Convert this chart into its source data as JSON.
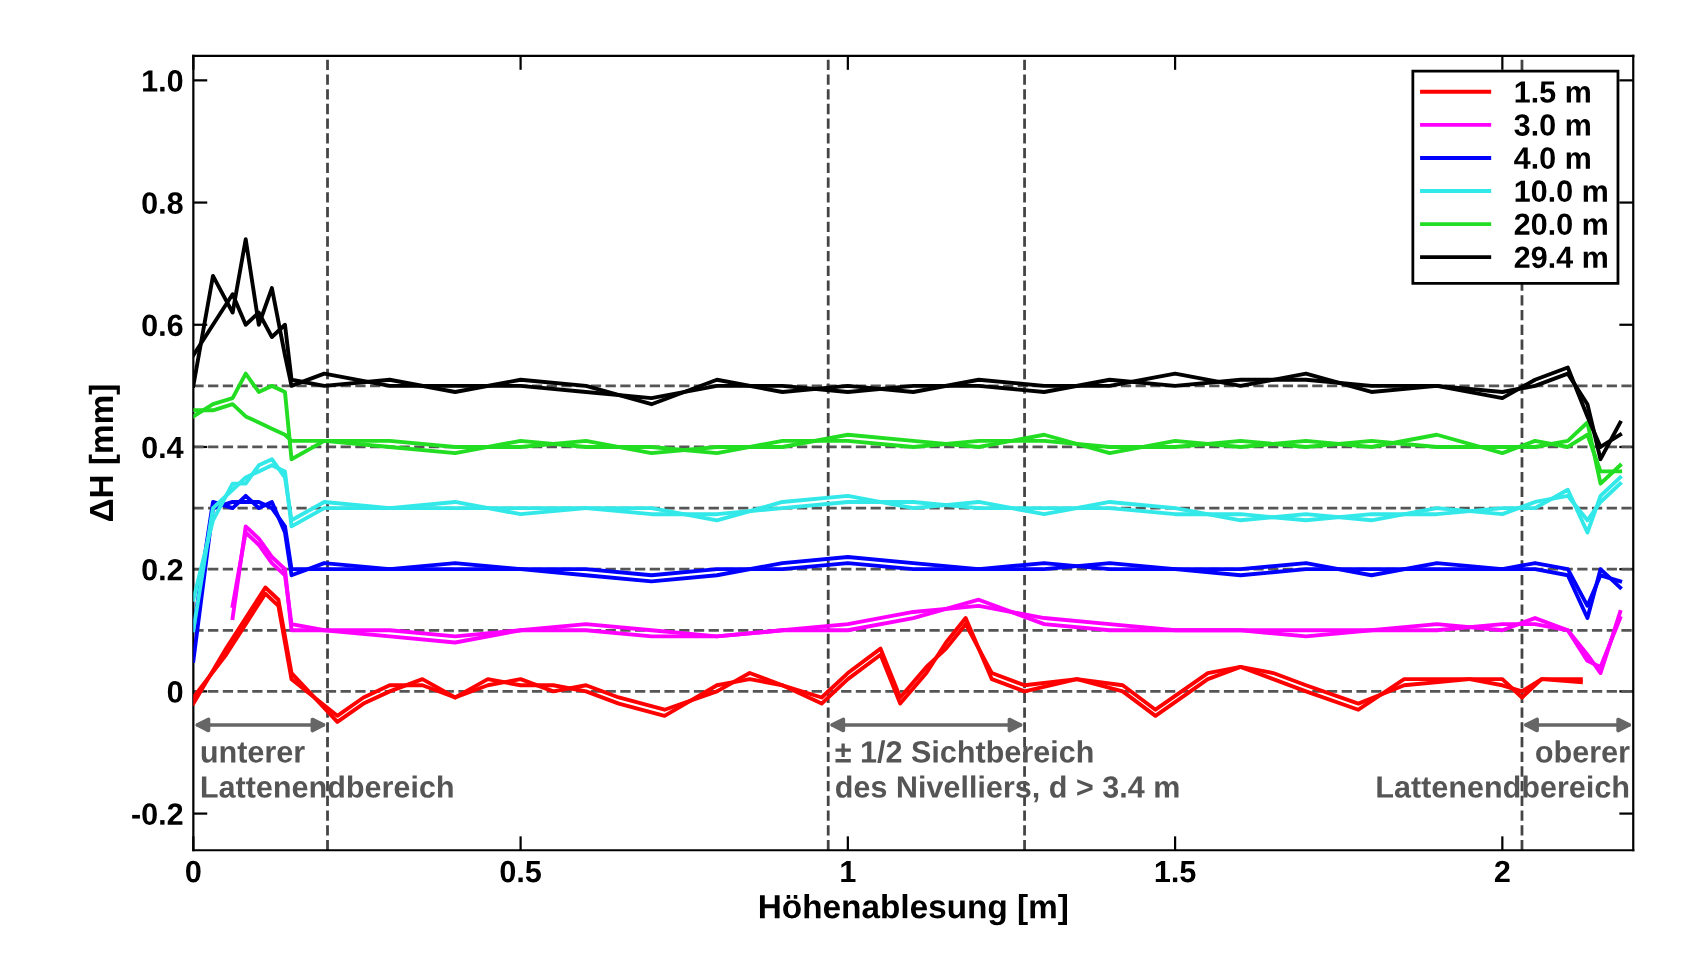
{
  "chart_data": {
    "type": "line",
    "xlabel": "Höhenablesung [m]",
    "ylabel": "ΔH [mm]",
    "xlim": [
      0,
      2.2
    ],
    "xticks": [
      0,
      0.5,
      1,
      1.5,
      2
    ],
    "ylim": [
      -0.26,
      1.04
    ],
    "yticks": [
      -0.2,
      0,
      0.2,
      0.4,
      0.6,
      0.8,
      {
        "value": 1.0,
        "label": "1.0"
      }
    ],
    "grid": false,
    "legend": "top right",
    "line_style": "solid",
    "marker": "none",
    "series": [
      {
        "name": "1.5 m",
        "color": "#ff0000",
        "x": [
          0,
          0.05,
          0.11,
          0.13,
          0.15,
          0.22,
          0.26,
          0.3,
          0.35,
          0.4,
          0.45,
          0.5,
          0.55,
          0.6,
          0.65,
          0.72,
          0.8,
          0.85,
          0.9,
          0.96,
          1.0,
          1.05,
          1.08,
          1.12,
          1.15,
          1.18,
          1.22,
          1.27,
          1.35,
          1.42,
          1.47,
          1.55,
          1.6,
          1.65,
          1.7,
          1.78,
          1.85,
          1.95,
          2.0,
          2.03,
          2.06,
          2.12
        ],
        "values": [
          -0.02,
          0.07,
          0.17,
          0.15,
          0.03,
          -0.05,
          -0.02,
          0,
          0.02,
          -0.01,
          0.01,
          0.02,
          0,
          0.01,
          -0.01,
          -0.03,
          0,
          0.03,
          0.01,
          -0.02,
          0.02,
          0.06,
          -0.02,
          0.03,
          0.08,
          0.12,
          0.02,
          0,
          0.02,
          0.01,
          -0.03,
          0.03,
          0.04,
          0.02,
          0,
          -0.03,
          0.02,
          0.02,
          0.01,
          0,
          0.02,
          0.015
        ]
      },
      {
        "color": "#ff0000",
        "x": [
          0,
          0.05,
          0.11,
          0.13,
          0.15,
          0.22,
          0.26,
          0.3,
          0.35,
          0.4,
          0.45,
          0.5,
          0.55,
          0.6,
          0.65,
          0.72,
          0.8,
          0.85,
          0.9,
          0.96,
          1.0,
          1.05,
          1.08,
          1.12,
          1.15,
          1.18,
          1.22,
          1.27,
          1.35,
          1.42,
          1.47,
          1.55,
          1.6,
          1.65,
          1.7,
          1.78,
          1.85,
          1.95,
          2.0,
          2.03,
          2.06,
          2.12
        ],
        "values": [
          -0.01,
          0.06,
          0.16,
          0.14,
          0.02,
          -0.04,
          -0.01,
          0.01,
          0.01,
          -0.01,
          0.02,
          0.01,
          0.01,
          0,
          -0.02,
          -0.04,
          0.01,
          0.02,
          0.01,
          -0.01,
          0.03,
          0.07,
          -0.01,
          0.04,
          0.07,
          0.11,
          0.03,
          0.01,
          0.02,
          0,
          -0.04,
          0.02,
          0.04,
          0.03,
          0.01,
          -0.02,
          0.01,
          0.02,
          0.02,
          -0.01,
          0.02,
          0.02
        ]
      },
      {
        "name": "3.0 m",
        "color": "#ff00ff",
        "x": [
          0.06,
          0.08,
          0.1,
          0.12,
          0.14,
          0.15,
          0.2,
          0.3,
          0.4,
          0.5,
          0.6,
          0.7,
          0.8,
          0.9,
          1.0,
          1.1,
          1.2,
          1.3,
          1.4,
          1.5,
          1.6,
          1.7,
          1.8,
          1.9,
          2.0,
          2.05,
          2.1,
          2.13,
          2.15,
          2.18
        ],
        "values": [
          0.12,
          0.27,
          0.25,
          0.22,
          0.2,
          0.1,
          0.1,
          0.09,
          0.08,
          0.1,
          0.1,
          0.09,
          0.09,
          0.1,
          0.1,
          0.12,
          0.15,
          0.11,
          0.1,
          0.1,
          0.1,
          0.09,
          0.1,
          0.11,
          0.1,
          0.12,
          0.1,
          0.06,
          0.03,
          0.13
        ]
      },
      {
        "color": "#ff00ff",
        "x": [
          0.06,
          0.08,
          0.1,
          0.12,
          0.14,
          0.15,
          0.2,
          0.3,
          0.4,
          0.5,
          0.6,
          0.7,
          0.8,
          0.9,
          1.0,
          1.1,
          1.2,
          1.3,
          1.4,
          1.5,
          1.6,
          1.7,
          1.8,
          1.9,
          2.0,
          2.05,
          2.1,
          2.13,
          2.15,
          2.18
        ],
        "values": [
          0.14,
          0.26,
          0.24,
          0.21,
          0.19,
          0.11,
          0.1,
          0.1,
          0.09,
          0.1,
          0.11,
          0.1,
          0.09,
          0.1,
          0.11,
          0.13,
          0.14,
          0.12,
          0.11,
          0.1,
          0.1,
          0.1,
          0.1,
          0.1,
          0.11,
          0.11,
          0.1,
          0.05,
          0.04,
          0.12
        ]
      },
      {
        "name": "4.0 m",
        "color": "#0000ff",
        "x": [
          0,
          0.03,
          0.06,
          0.08,
          0.1,
          0.12,
          0.14,
          0.15,
          0.2,
          0.3,
          0.4,
          0.5,
          0.6,
          0.7,
          0.8,
          0.9,
          1.0,
          1.1,
          1.2,
          1.3,
          1.4,
          1.5,
          1.6,
          1.7,
          1.8,
          1.9,
          2.0,
          2.05,
          2.1,
          2.13,
          2.15,
          2.18
        ],
        "values": [
          0.05,
          0.3,
          0.31,
          0.31,
          0.31,
          0.3,
          0.27,
          0.2,
          0.2,
          0.2,
          0.2,
          0.2,
          0.2,
          0.19,
          0.2,
          0.2,
          0.21,
          0.2,
          0.2,
          0.2,
          0.21,
          0.2,
          0.19,
          0.2,
          0.2,
          0.2,
          0.2,
          0.2,
          0.19,
          0.12,
          0.2,
          0.17
        ]
      },
      {
        "color": "#0000ff",
        "x": [
          0,
          0.03,
          0.06,
          0.08,
          0.1,
          0.12,
          0.14,
          0.15,
          0.2,
          0.3,
          0.4,
          0.5,
          0.6,
          0.7,
          0.8,
          0.9,
          1.0,
          1.1,
          1.2,
          1.3,
          1.4,
          1.5,
          1.6,
          1.7,
          1.8,
          1.9,
          2.0,
          2.05,
          2.1,
          2.13,
          2.15,
          2.18
        ],
        "values": [
          0.1,
          0.31,
          0.3,
          0.32,
          0.3,
          0.31,
          0.26,
          0.19,
          0.21,
          0.2,
          0.21,
          0.2,
          0.19,
          0.18,
          0.19,
          0.21,
          0.22,
          0.21,
          0.2,
          0.21,
          0.2,
          0.2,
          0.2,
          0.21,
          0.19,
          0.21,
          0.2,
          0.21,
          0.2,
          0.14,
          0.19,
          0.18
        ]
      },
      {
        "name": "10.0 m",
        "color": "#33e8e8",
        "x": [
          0,
          0.03,
          0.06,
          0.08,
          0.1,
          0.12,
          0.14,
          0.15,
          0.2,
          0.3,
          0.4,
          0.5,
          0.6,
          0.7,
          0.8,
          0.9,
          1.0,
          1.1,
          1.2,
          1.3,
          1.4,
          1.5,
          1.6,
          1.7,
          1.8,
          1.9,
          2.0,
          2.05,
          2.1,
          2.13,
          2.15,
          2.18
        ],
        "values": [
          0.1,
          0.3,
          0.33,
          0.35,
          0.36,
          0.37,
          0.36,
          0.27,
          0.3,
          0.3,
          0.3,
          0.3,
          0.3,
          0.29,
          0.29,
          0.3,
          0.31,
          0.31,
          0.3,
          0.3,
          0.3,
          0.29,
          0.29,
          0.28,
          0.29,
          0.29,
          0.3,
          0.3,
          0.33,
          0.26,
          0.32,
          0.35
        ]
      },
      {
        "color": "#33e8e8",
        "x": [
          0,
          0.03,
          0.06,
          0.08,
          0.1,
          0.12,
          0.14,
          0.15,
          0.2,
          0.3,
          0.4,
          0.5,
          0.6,
          0.7,
          0.8,
          0.9,
          1.0,
          1.1,
          1.2,
          1.3,
          1.4,
          1.5,
          1.6,
          1.7,
          1.8,
          1.9,
          2.0,
          2.05,
          2.1,
          2.13,
          2.15,
          2.18
        ],
        "values": [
          0.15,
          0.28,
          0.34,
          0.34,
          0.37,
          0.38,
          0.35,
          0.28,
          0.31,
          0.3,
          0.31,
          0.29,
          0.3,
          0.3,
          0.28,
          0.31,
          0.32,
          0.3,
          0.31,
          0.29,
          0.31,
          0.3,
          0.28,
          0.29,
          0.28,
          0.3,
          0.29,
          0.31,
          0.32,
          0.28,
          0.31,
          0.34
        ]
      },
      {
        "name": "20.0 m",
        "color": "#22dd22",
        "x": [
          0,
          0.03,
          0.06,
          0.08,
          0.1,
          0.12,
          0.14,
          0.15,
          0.2,
          0.3,
          0.4,
          0.5,
          0.6,
          0.7,
          0.8,
          0.9,
          1.0,
          1.1,
          1.2,
          1.3,
          1.4,
          1.5,
          1.6,
          1.7,
          1.8,
          1.9,
          2.0,
          2.05,
          2.1,
          2.13,
          2.15,
          2.18
        ],
        "values": [
          0.45,
          0.47,
          0.48,
          0.52,
          0.49,
          0.5,
          0.49,
          0.38,
          0.41,
          0.4,
          0.39,
          0.41,
          0.4,
          0.4,
          0.39,
          0.41,
          0.41,
          0.4,
          0.41,
          0.41,
          0.4,
          0.4,
          0.41,
          0.4,
          0.41,
          0.4,
          0.4,
          0.4,
          0.41,
          0.44,
          0.34,
          0.37
        ]
      },
      {
        "color": "#22dd22",
        "x": [
          0,
          0.03,
          0.06,
          0.08,
          0.1,
          0.12,
          0.14,
          0.15,
          0.2,
          0.3,
          0.4,
          0.5,
          0.6,
          0.7,
          0.8,
          0.9,
          1.0,
          1.1,
          1.2,
          1.3,
          1.4,
          1.5,
          1.6,
          1.7,
          1.8,
          1.9,
          2.0,
          2.05,
          2.1,
          2.13,
          2.15,
          2.18
        ],
        "values": [
          0.46,
          0.46,
          0.47,
          0.45,
          0.44,
          0.43,
          0.42,
          0.41,
          0.41,
          0.41,
          0.4,
          0.4,
          0.41,
          0.39,
          0.4,
          0.4,
          0.42,
          0.41,
          0.4,
          0.42,
          0.39,
          0.41,
          0.4,
          0.41,
          0.4,
          0.42,
          0.39,
          0.41,
          0.4,
          0.42,
          0.36,
          0.36
        ]
      },
      {
        "name": "29.4 m",
        "color": "#000000",
        "x": [
          0,
          0.03,
          0.06,
          0.08,
          0.1,
          0.12,
          0.14,
          0.15,
          0.2,
          0.3,
          0.4,
          0.5,
          0.6,
          0.7,
          0.8,
          0.9,
          1.0,
          1.1,
          1.2,
          1.3,
          1.4,
          1.5,
          1.6,
          1.7,
          1.8,
          1.9,
          2.0,
          2.05,
          2.1,
          2.13,
          2.15,
          2.18
        ],
        "values": [
          0.5,
          0.68,
          0.62,
          0.74,
          0.6,
          0.66,
          0.55,
          0.5,
          0.52,
          0.5,
          0.5,
          0.5,
          0.49,
          0.48,
          0.5,
          0.5,
          0.49,
          0.5,
          0.5,
          0.49,
          0.51,
          0.5,
          0.51,
          0.51,
          0.5,
          0.5,
          0.49,
          0.5,
          0.52,
          0.47,
          0.38,
          0.44
        ]
      },
      {
        "color": "#000000",
        "x": [
          0,
          0.03,
          0.06,
          0.08,
          0.1,
          0.12,
          0.14,
          0.15,
          0.2,
          0.3,
          0.4,
          0.5,
          0.6,
          0.7,
          0.8,
          0.9,
          1.0,
          1.1,
          1.2,
          1.3,
          1.4,
          1.5,
          1.6,
          1.7,
          1.8,
          1.9,
          2.0,
          2.05,
          2.1,
          2.13,
          2.15,
          2.18
        ],
        "values": [
          0.55,
          0.6,
          0.65,
          0.6,
          0.62,
          0.58,
          0.6,
          0.51,
          0.5,
          0.51,
          0.49,
          0.51,
          0.5,
          0.47,
          0.51,
          0.49,
          0.5,
          0.49,
          0.51,
          0.5,
          0.5,
          0.52,
          0.5,
          0.52,
          0.49,
          0.5,
          0.48,
          0.51,
          0.53,
          0.45,
          0.4,
          0.42
        ]
      }
    ],
    "ref_lines": [
      {
        "axis": "y",
        "value": 0,
        "color": "#555555",
        "line_style": "dashed"
      },
      {
        "axis": "y",
        "value": 0.1,
        "color": "#555555",
        "line_style": "dashed"
      },
      {
        "axis": "y",
        "value": 0.2,
        "color": "#555555",
        "line_style": "dashed"
      },
      {
        "axis": "y",
        "value": 0.3,
        "color": "#555555",
        "line_style": "dashed"
      },
      {
        "axis": "y",
        "value": 0.4,
        "color": "#555555",
        "line_style": "dashed"
      },
      {
        "axis": "y",
        "value": 0.5,
        "color": "#555555",
        "line_style": "dashed"
      },
      {
        "axis": "x",
        "value": 0.205,
        "color": "#444444",
        "line_style": "dashed"
      },
      {
        "axis": "x",
        "value": 0.97,
        "color": "#444444",
        "line_style": "dashed"
      },
      {
        "axis": "x",
        "value": 1.27,
        "color": "#444444",
        "line_style": "dashed"
      },
      {
        "axis": "x",
        "value": 2.03,
        "color": "#444444",
        "line_style": "dashed"
      }
    ],
    "annotations": [
      "unterer\nLattenendbereich",
      "± 1/2 Sichtbereich\ndes Nivelliers, d > 3.4 m",
      "oberer\nLattenendbereich"
    ]
  }
}
